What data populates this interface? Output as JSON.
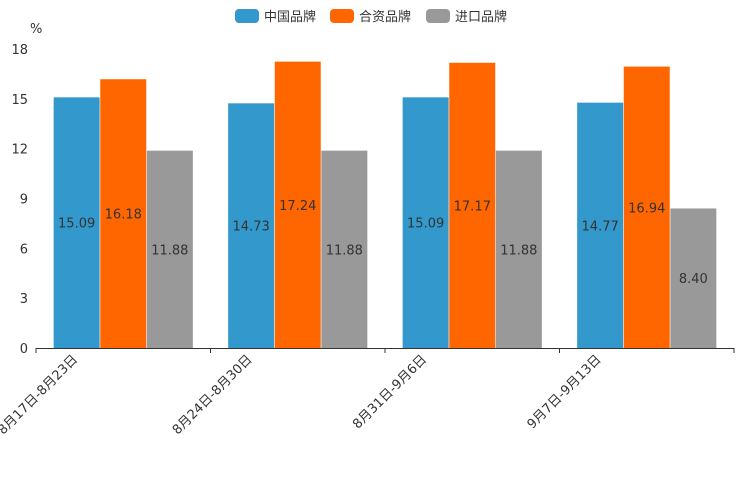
{
  "chart_data": {
    "type": "bar",
    "title": "",
    "xlabel": "",
    "ylabel": "%",
    "ylim": [
      0,
      18
    ],
    "yticks": [
      0,
      3,
      6,
      9,
      12,
      15,
      18
    ],
    "grid": false,
    "legend_position": "top-center",
    "categories": [
      "8月17日-8月23日",
      "8月24日-8月30日",
      "8月31日-9月6日",
      "9月7日-9月13日"
    ],
    "series": [
      {
        "name": "中国品牌",
        "color": "#3399cc",
        "values": [
          15.09,
          14.73,
          15.09,
          14.77
        ],
        "labels": [
          "15.09",
          "14.73",
          "15.09",
          "14.77"
        ]
      },
      {
        "name": "合资品牌",
        "color": "#ff6600",
        "values": [
          16.18,
          17.24,
          17.17,
          16.94
        ],
        "labels": [
          "16.18",
          "17.24",
          "17.17",
          "16.94"
        ]
      },
      {
        "name": "进口品牌",
        "color": "#999999",
        "values": [
          11.88,
          11.88,
          11.88,
          8.4
        ],
        "labels": [
          "11.88",
          "11.88",
          "11.88",
          "8.40"
        ]
      }
    ]
  }
}
